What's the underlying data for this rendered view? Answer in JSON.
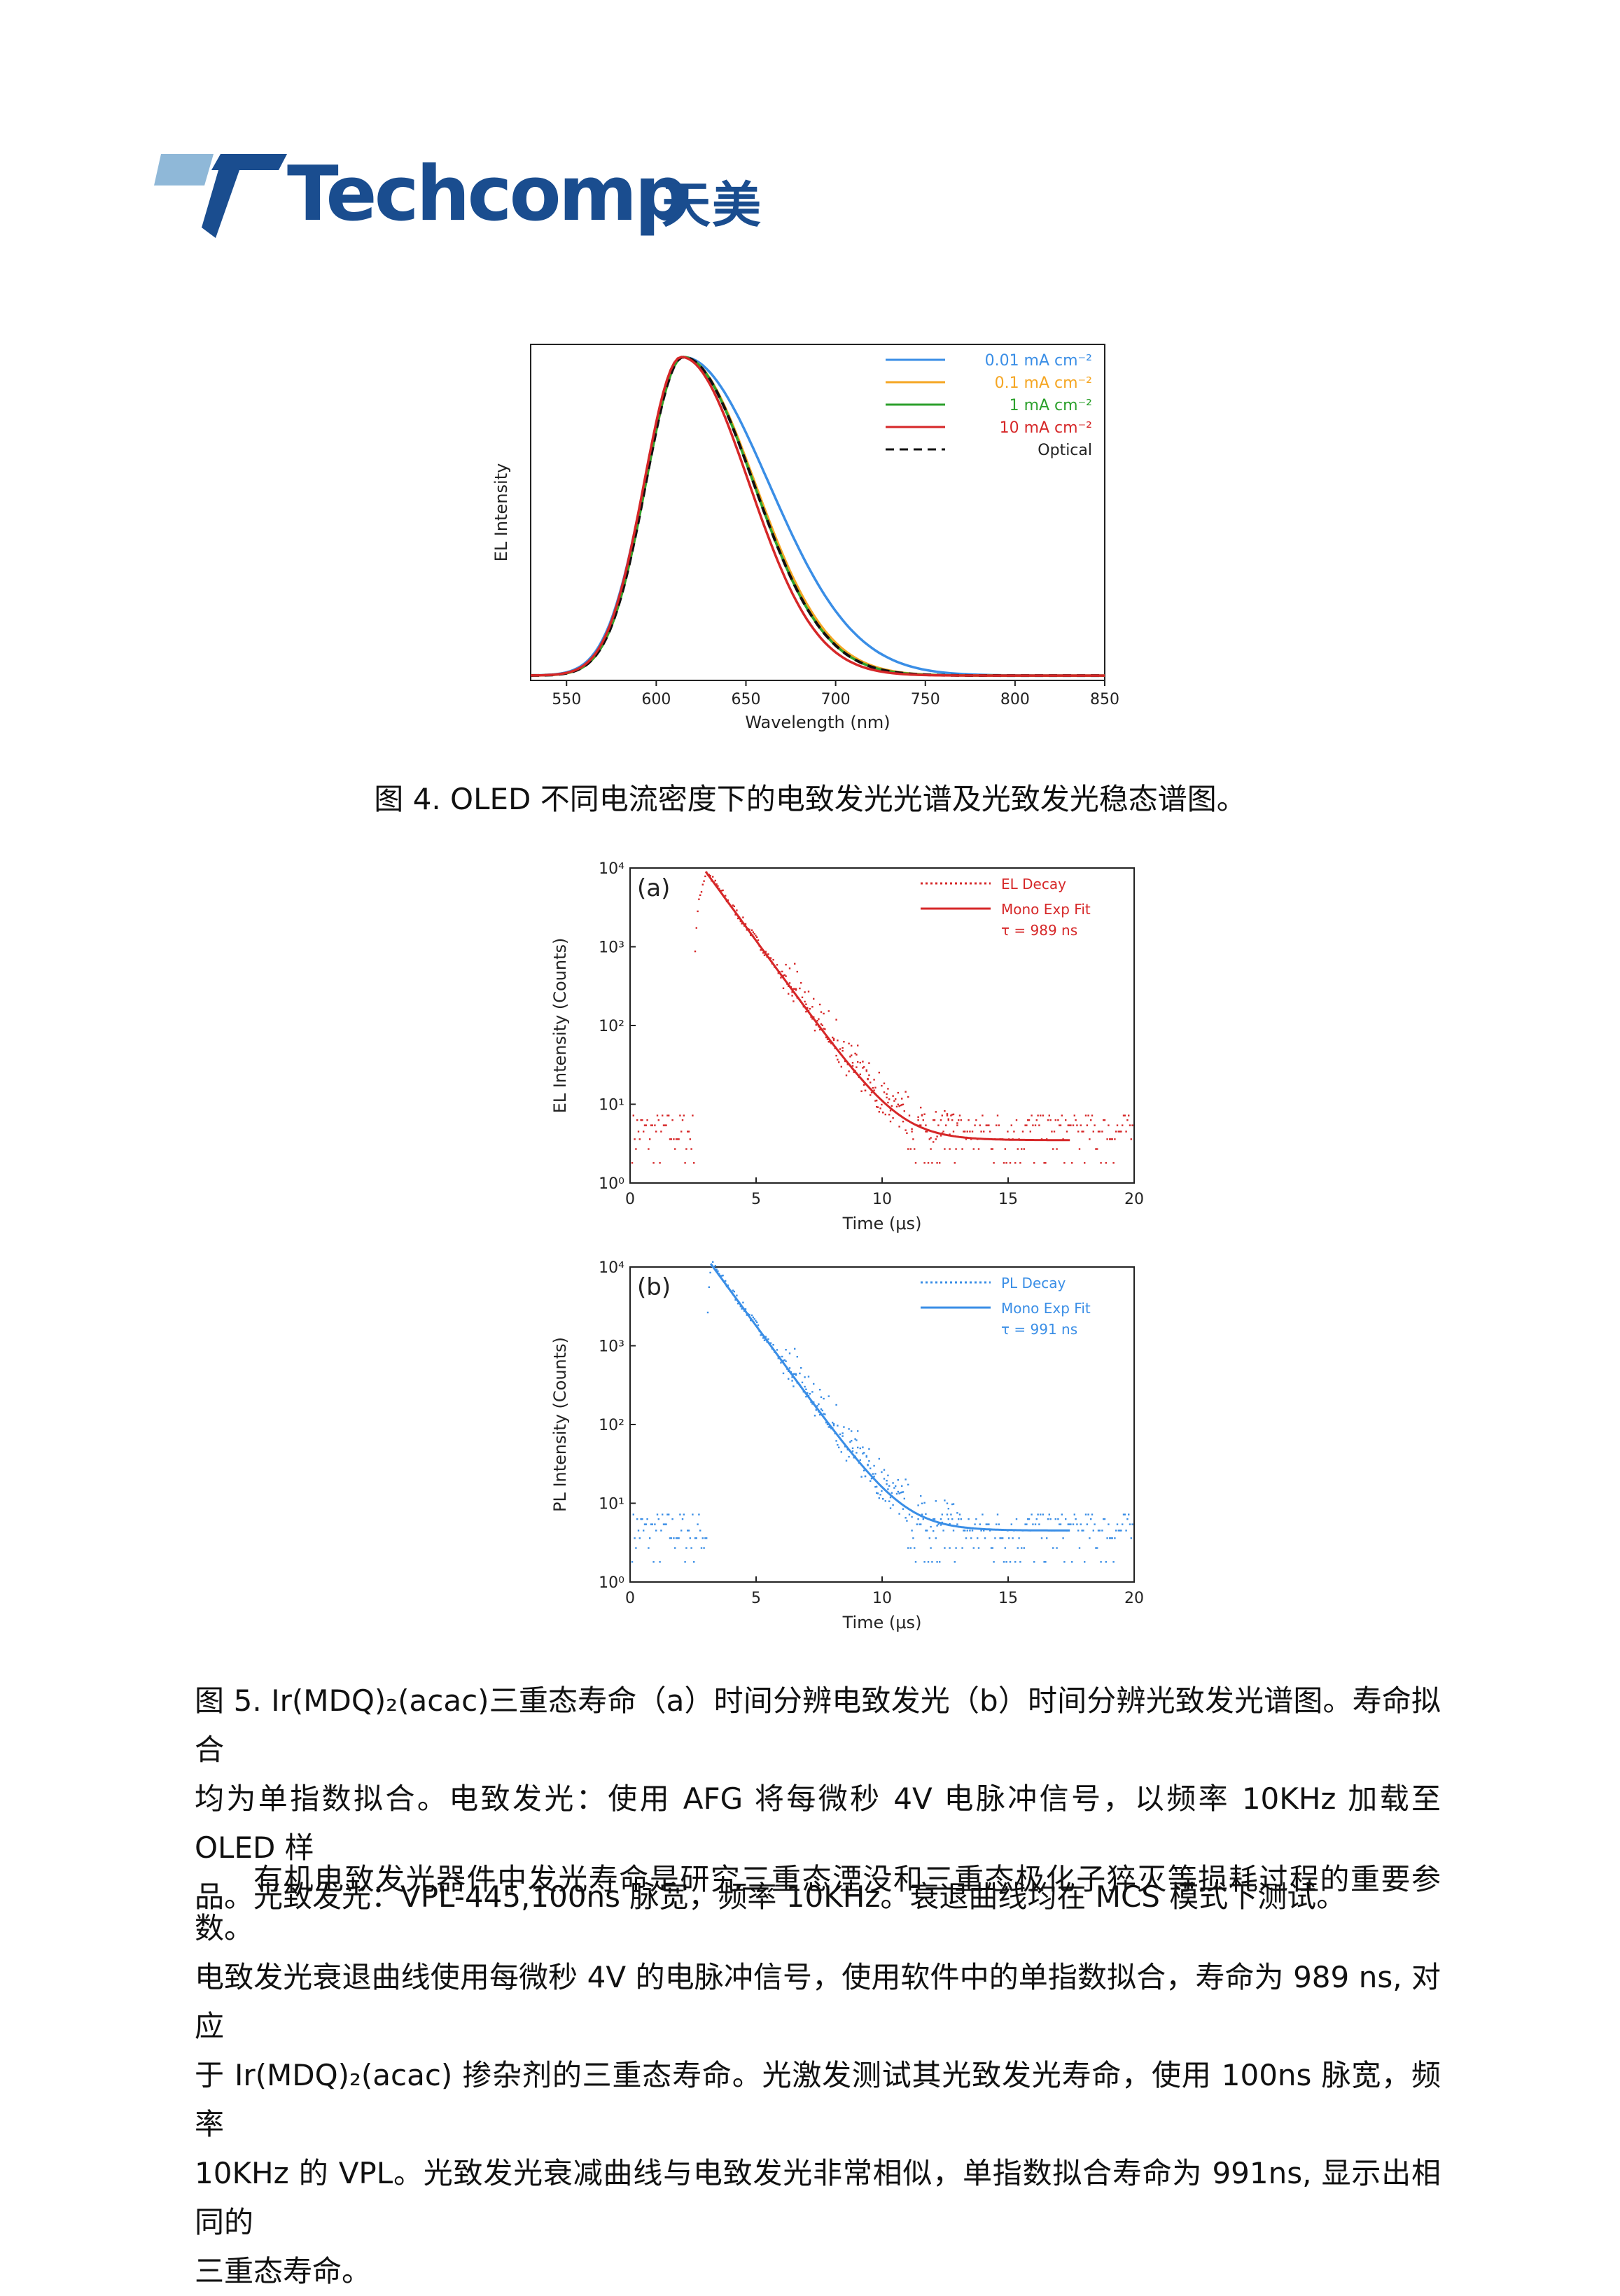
{
  "brand": {
    "name": "Techcomp",
    "name_cn": "天美",
    "color": "#1a4d8f",
    "accent": "#8fb8d8"
  },
  "figure4": {
    "caption": "图 4. OLED 不同电流密度下的电致发光光谱及光致发光稳态谱图。",
    "chart_data": {
      "type": "line",
      "xlabel": "Wavelength (nm)",
      "ylabel": "EL Intensity",
      "xlim": [
        530,
        850
      ],
      "xticks": [
        "550",
        "600",
        "650",
        "700",
        "750",
        "800",
        "850"
      ],
      "legend_position": "top-right",
      "series": [
        {
          "name": "0.01 mA cm⁻²",
          "color": "#3a8ee6",
          "peak": 615,
          "w_left": 28,
          "w_right": 62
        },
        {
          "name": "0.1 mA cm⁻²",
          "color": "#f5a623",
          "peak": 615,
          "w_left": 27,
          "w_right": 52
        },
        {
          "name": "1 mA cm⁻²",
          "color": "#2ca02c",
          "peak": 615,
          "w_left": 27,
          "w_right": 51
        },
        {
          "name": "10 mA cm⁻²",
          "color": "#d62728",
          "peak": 614,
          "w_left": 27,
          "w_right": 49
        },
        {
          "name": "Optical",
          "color": "#111111",
          "dashed": true,
          "peak": 615,
          "w_left": 27,
          "w_right": 51
        }
      ]
    }
  },
  "figure5": {
    "charts": [
      {
        "panel": "(a)",
        "type": "scatter",
        "xlabel": "Time (μs)",
        "ylabel": "EL Intensity (Counts)",
        "xlim": [
          0,
          20
        ],
        "ylim_log10": [
          0,
          4
        ],
        "xticks": [
          "0",
          "5",
          "10",
          "15",
          "20"
        ],
        "yticks": [
          "10⁰",
          "10¹",
          "10²",
          "10³",
          "10⁴"
        ],
        "color": "#d62728",
        "legend": {
          "decay": "EL Decay",
          "fit": "Mono Exp Fit",
          "tau": "τ = 989 ns"
        },
        "rise_start_us": 2.5,
        "peak_us": 3.0,
        "peak_counts": 9000,
        "tau_us": 0.989,
        "baseline_counts": 3.5,
        "fit_end_us": 17.5
      },
      {
        "panel": "(b)",
        "type": "scatter",
        "xlabel": "Time (μs)",
        "ylabel": "PL Intensity (Counts)",
        "xlim": [
          0,
          20
        ],
        "ylim_log10": [
          0,
          4
        ],
        "xticks": [
          "0",
          "5",
          "10",
          "15",
          "20"
        ],
        "yticks": [
          "10⁰",
          "10¹",
          "10²",
          "10³",
          "10⁴"
        ],
        "color": "#3a8ee6",
        "legend": {
          "decay": "PL Decay",
          "fit": "Mono Exp Fit",
          "tau": "τ = 991 ns"
        },
        "rise_start_us": 3.0,
        "peak_us": 3.2,
        "peak_counts": 11000,
        "tau_us": 0.991,
        "baseline_counts": 4.5,
        "fit_end_us": 17.5
      }
    ],
    "caption_lines": [
      "图 5. Ir(MDQ)₂(acac)三重态寿命（a）时间分辨电致发光（b）时间分辨光致发光谱图。寿命拟合",
      "均为单指数拟合。电致发光：使用 AFG 将每微秒 4V 电脉冲信号，以频率 10KHz 加载至 OLED 样",
      "品。光致发光：VPL-445,100ns 脉宽，频率 10KHz。衰退曲线均在 MCS 模式下测试。"
    ]
  },
  "paragraph_lines": [
    "有机电致发光器件中发光寿命是研究三重态湮没和三重态极化子猝灭等损耗过程的重要参数。",
    "电致发光衰退曲线使用每微秒 4V 的电脉冲信号，使用软件中的单指数拟合，寿命为 989 ns, 对应",
    "于 Ir(MDQ)₂(acac) 掺杂剂的三重态寿命。光激发测试其光致发光寿命，使用 100ns 脉宽，频率",
    "10KHz 的 VPL。光致发光衰减曲线与电致发光非常相似，单指数拟合寿命为 991ns, 显示出相同的",
    "三重态寿命。"
  ]
}
